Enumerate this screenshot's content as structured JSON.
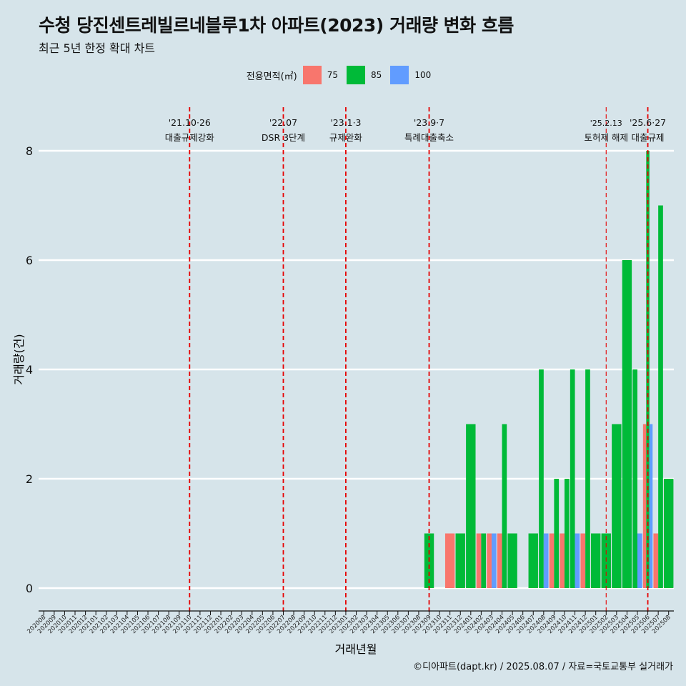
{
  "title": "수청 당진센트레빌르네블루1차 아파트(2023) 거래량 변화 흐름",
  "subtitle": "최근 5년 한정 확대 차트",
  "caption": "©디아파트(dapt.kr) / 2025.08.07 / 자료=국토교통부 실거래가",
  "legend": {
    "title": "전용면적(㎡)",
    "items": [
      {
        "label": "75",
        "color": "#f8766d"
      },
      {
        "label": "85",
        "color": "#00ba38"
      },
      {
        "label": "100",
        "color": "#619cff"
      }
    ]
  },
  "chart_data": {
    "type": "bar",
    "xlabel": "거래년월",
    "ylabel": "거래량(건)",
    "ylim": [
      0,
      8
    ],
    "yticks": [
      0,
      2,
      4,
      6,
      8
    ],
    "grid": true,
    "legend_position": "top",
    "categories": [
      "202008",
      "202009",
      "202010",
      "202011",
      "202012",
      "202101",
      "202102",
      "202103",
      "202104",
      "202105",
      "202106",
      "202107",
      "202108",
      "202109",
      "202110",
      "202111",
      "202112",
      "202201",
      "202202",
      "202203",
      "202204",
      "202205",
      "202206",
      "202207",
      "202208",
      "202209",
      "202210",
      "202211",
      "202212",
      "202301",
      "202302",
      "202303",
      "202304",
      "202305",
      "202306",
      "202307",
      "202308",
      "202309",
      "202310",
      "202311",
      "202312",
      "202401",
      "202402",
      "202403",
      "202404",
      "202405",
      "202406",
      "202407",
      "202408",
      "202409",
      "202410",
      "202411",
      "202412",
      "202501",
      "202502",
      "202503",
      "202504",
      "202505",
      "202506",
      "202507",
      "202508"
    ],
    "series": [
      {
        "name": "75",
        "color": "#f8766d",
        "values": [
          0,
          0,
          0,
          0,
          0,
          0,
          0,
          0,
          0,
          0,
          0,
          0,
          0,
          0,
          0,
          0,
          0,
          0,
          0,
          0,
          0,
          0,
          0,
          0,
          0,
          0,
          0,
          0,
          0,
          0,
          0,
          0,
          0,
          0,
          0,
          0,
          0,
          0,
          0,
          1,
          0,
          0,
          1,
          1,
          1,
          0,
          0,
          0,
          0,
          1,
          1,
          0,
          1,
          0,
          0,
          0,
          0,
          0,
          3,
          1,
          0
        ]
      },
      {
        "name": "85",
        "color": "#00ba38",
        "values": [
          0,
          0,
          0,
          0,
          0,
          0,
          0,
          0,
          0,
          0,
          0,
          0,
          0,
          0,
          0,
          0,
          0,
          0,
          0,
          0,
          0,
          0,
          0,
          0,
          0,
          0,
          0,
          0,
          0,
          0,
          0,
          0,
          0,
          0,
          0,
          0,
          0,
          1,
          0,
          0,
          1,
          3,
          1,
          0,
          3,
          1,
          0,
          1,
          4,
          2,
          2,
          4,
          4,
          1,
          1,
          3,
          6,
          4,
          8,
          7,
          2
        ]
      },
      {
        "name": "100",
        "color": "#619cff",
        "values": [
          0,
          0,
          0,
          0,
          0,
          0,
          0,
          0,
          0,
          0,
          0,
          0,
          0,
          0,
          0,
          0,
          0,
          0,
          0,
          0,
          0,
          0,
          0,
          0,
          0,
          0,
          0,
          0,
          0,
          0,
          0,
          0,
          0,
          0,
          0,
          0,
          0,
          0,
          0,
          0,
          0,
          0,
          0,
          1,
          0,
          0,
          0,
          0,
          1,
          0,
          0,
          1,
          0,
          0,
          0,
          0,
          0,
          1,
          3,
          0,
          0
        ]
      }
    ],
    "events": [
      {
        "at": "202110",
        "date": "'21.10·26",
        "label": "대출규제강화"
      },
      {
        "at": "202207",
        "date": "'22.07",
        "label": "DSR 3단계"
      },
      {
        "at": "202301",
        "date": "'23.1·3",
        "label": "규제완화"
      },
      {
        "at": "202309",
        "date": "'23.9·7",
        "label": "특례대출축소"
      },
      {
        "at": "202502",
        "date": "'25.2.13",
        "label": "토허제 해제"
      },
      {
        "at": "202506",
        "date": "'25.6·27",
        "label": "대출규제"
      }
    ]
  }
}
